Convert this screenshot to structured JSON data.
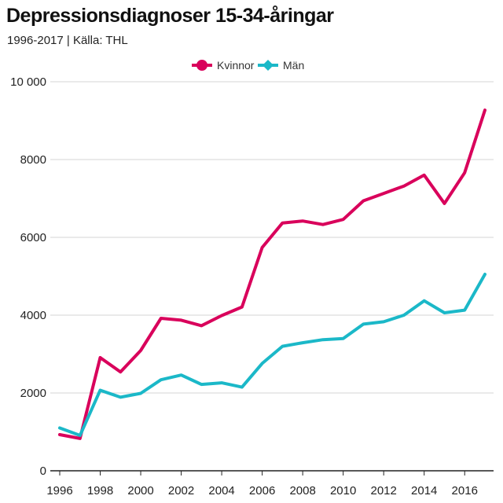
{
  "title": "Depressionsdiagnoser 15-34-åringar",
  "subtitle": "1996-2017 | Källa: THL",
  "chart_data": {
    "type": "line",
    "title": "Depressionsdiagnoser 15-34-åringar",
    "subtitle": "1996-2017 | Källa: THL",
    "xlabel": "",
    "ylabel": "",
    "x": [
      1996,
      1997,
      1998,
      1999,
      2000,
      2001,
      2002,
      2003,
      2004,
      2005,
      2006,
      2007,
      2008,
      2009,
      2010,
      2011,
      2012,
      2013,
      2014,
      2015,
      2016,
      2017
    ],
    "xticks": [
      "1996",
      "1998",
      "2000",
      "2002",
      "2004",
      "2006",
      "2008",
      "2010",
      "2012",
      "2014",
      "2016"
    ],
    "yticks": [
      "0",
      "2000",
      "4000",
      "6000",
      "8000",
      "10 000"
    ],
    "ylim": [
      0,
      10000
    ],
    "xlim": [
      1996,
      2017
    ],
    "grid": "horizontal",
    "legend_position": "top-center",
    "series": [
      {
        "name": "Kvinnor",
        "color": "#d9005b",
        "marker": "circle",
        "values": [
          930,
          830,
          2910,
          2540,
          3090,
          3920,
          3870,
          3730,
          3990,
          4210,
          5740,
          6370,
          6420,
          6330,
          6460,
          6940,
          7130,
          7320,
          7600,
          6870,
          7660,
          9270
        ]
      },
      {
        "name": "Män",
        "color": "#1bb8c8",
        "marker": "diamond",
        "values": [
          1100,
          910,
          2070,
          1890,
          1990,
          2340,
          2460,
          2220,
          2260,
          2150,
          2760,
          3200,
          3290,
          3370,
          3400,
          3770,
          3830,
          4000,
          4370,
          4060,
          4130,
          5050
        ]
      }
    ]
  }
}
